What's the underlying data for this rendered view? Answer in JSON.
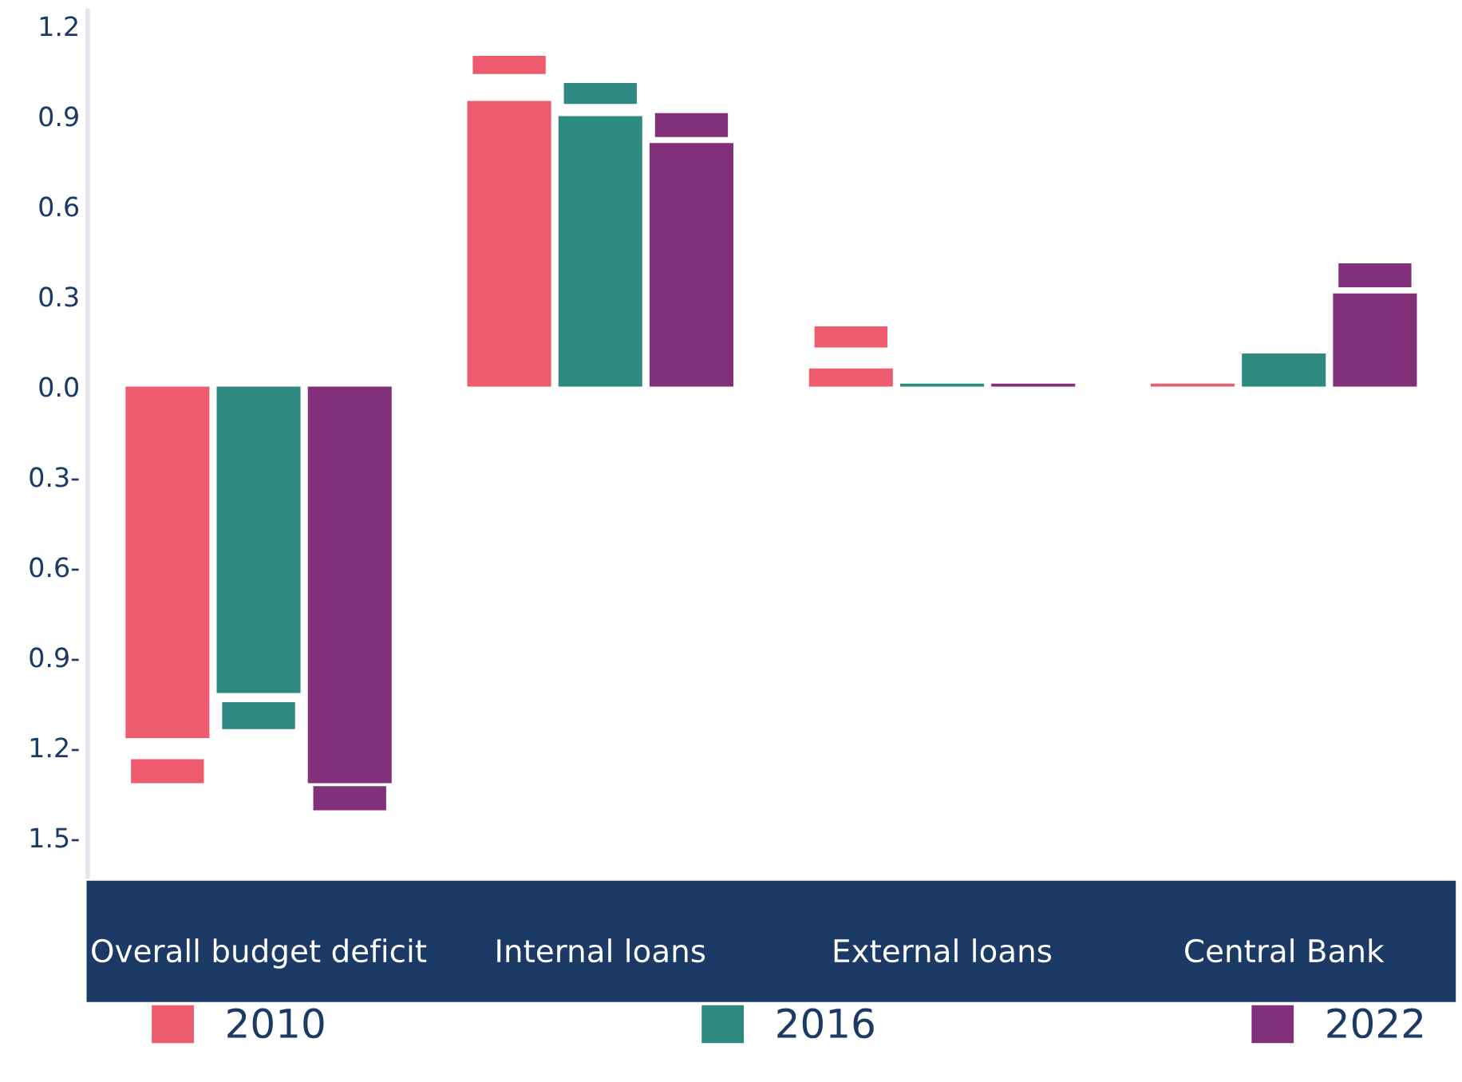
{
  "chart_data": {
    "type": "bar",
    "categories": [
      "Overall budget deficit",
      "Internal loans",
      "External loans",
      "Central Bank"
    ],
    "series": [
      {
        "name": "2010",
        "color": "#ee5a6e",
        "values": [
          -1.17,
          0.95,
          0.06,
          0.01
        ]
      },
      {
        "name": "2016",
        "color": "#2e8a80",
        "values": [
          -1.02,
          0.9,
          0.01,
          0.11
        ]
      },
      {
        "name": "2022",
        "color": "#82307a",
        "values": [
          -1.32,
          0.81,
          0.01,
          0.31
        ]
      },
      {
        "color": "#ee5a6e",
        "base": [
          -1.24,
          1.04,
          0.13,
          null
        ],
        "values": [
          -0.08,
          0.06,
          0.07,
          null
        ]
      },
      {
        "color": "#2e8a80",
        "base": [
          -1.05,
          0.94,
          null,
          null
        ],
        "values": [
          -0.09,
          0.07,
          null,
          null
        ]
      },
      {
        "color": "#82307a",
        "base": [
          -1.33,
          0.83,
          null,
          0.33
        ],
        "values": [
          -0.08,
          0.08,
          null,
          0.08
        ]
      }
    ],
    "ylim": [
      -1.63,
      1.25
    ],
    "yticks": [
      {
        "value": -1.5,
        "label": "1.5-"
      },
      {
        "value": -1.2,
        "label": "1.2-"
      },
      {
        "value": -0.9,
        "label": "0.9-"
      },
      {
        "value": -0.6,
        "label": "0.6-"
      },
      {
        "value": -0.3,
        "label": "0.3-"
      },
      {
        "value": 0,
        "label": "0.0"
      },
      {
        "value": 0.3,
        "label": "0.3"
      },
      {
        "value": 0.6,
        "label": "0.6"
      },
      {
        "value": 0.9,
        "label": "0.9"
      },
      {
        "value": 1.2,
        "label": "1.2"
      }
    ],
    "grid": false,
    "legend": "bottom"
  }
}
